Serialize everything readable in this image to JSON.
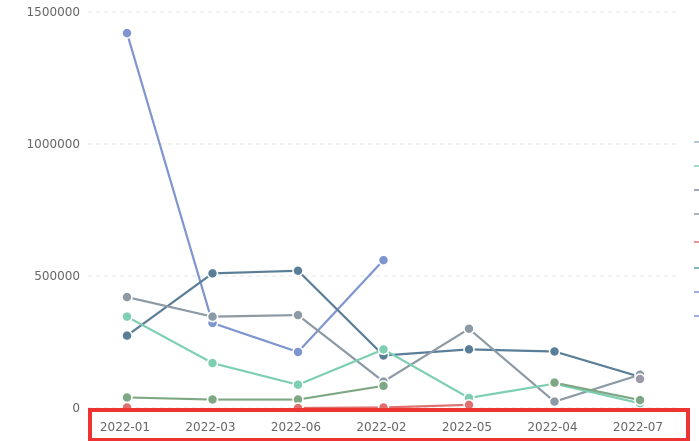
{
  "chart_data": {
    "type": "line",
    "categories": [
      "2022-01",
      "2022-03",
      "2022-06",
      "2022-02",
      "2022-05",
      "2022-04",
      "2022-07"
    ],
    "ylim": [
      0,
      1500000
    ],
    "y_ticks": [
      "0",
      "500000",
      "1000000",
      "1500000"
    ],
    "grid": true,
    "legend": "right",
    "series": [
      {
        "color": "#7e95d0",
        "values": [
          1420000,
          322000,
          212000,
          560000,
          null,
          null,
          34000
        ]
      },
      {
        "color": "#5b7e98",
        "values": [
          274000,
          510000,
          520000,
          199000,
          222000,
          214000,
          118000
        ]
      },
      {
        "color": "#8c9aa6",
        "values": [
          420000,
          346000,
          352000,
          100000,
          300000,
          24000,
          126000
        ]
      },
      {
        "color": "#7ecfb2",
        "values": [
          346000,
          170000,
          88000,
          222000,
          38000,
          92000,
          18000
        ]
      },
      {
        "color": "#7ea884",
        "values": [
          40000,
          32000,
          32000,
          84000,
          null,
          96000,
          30000
        ]
      },
      {
        "color": "#e07070",
        "values": [
          2000,
          null,
          0,
          2000,
          12000,
          null,
          null
        ]
      },
      {
        "color": "#9a9aab",
        "values": [
          null,
          null,
          null,
          null,
          null,
          null,
          110000
        ]
      }
    ]
  },
  "legend_colors": [
    "#9ab0c0",
    "#7ecfb2",
    "#7a8aa0",
    "#8c9aa6",
    "#e07070",
    "#5b9aa8",
    "#7e95d0",
    "#7e95d0"
  ]
}
